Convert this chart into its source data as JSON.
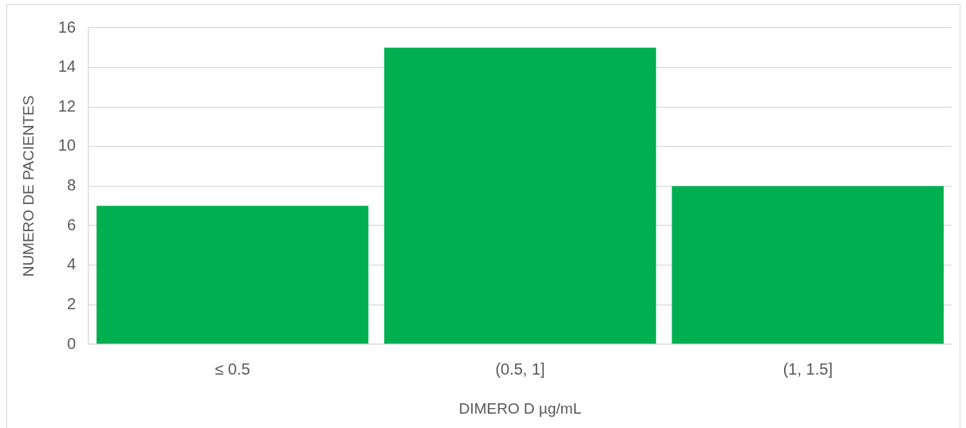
{
  "chart_data": {
    "type": "bar",
    "categories": [
      "≤ 0.5",
      "(0.5, 1]",
      "(1, 1.5]"
    ],
    "values": [
      7,
      15,
      8
    ],
    "color": "#00b050",
    "xlabel": "DIMERO D µg/mL",
    "ylabel": "NUMERO DE PACIENTES",
    "ylim": [
      0,
      16
    ],
    "yticks": [
      0,
      2,
      4,
      6,
      8,
      10,
      12,
      14,
      16
    ],
    "grid": "y"
  }
}
